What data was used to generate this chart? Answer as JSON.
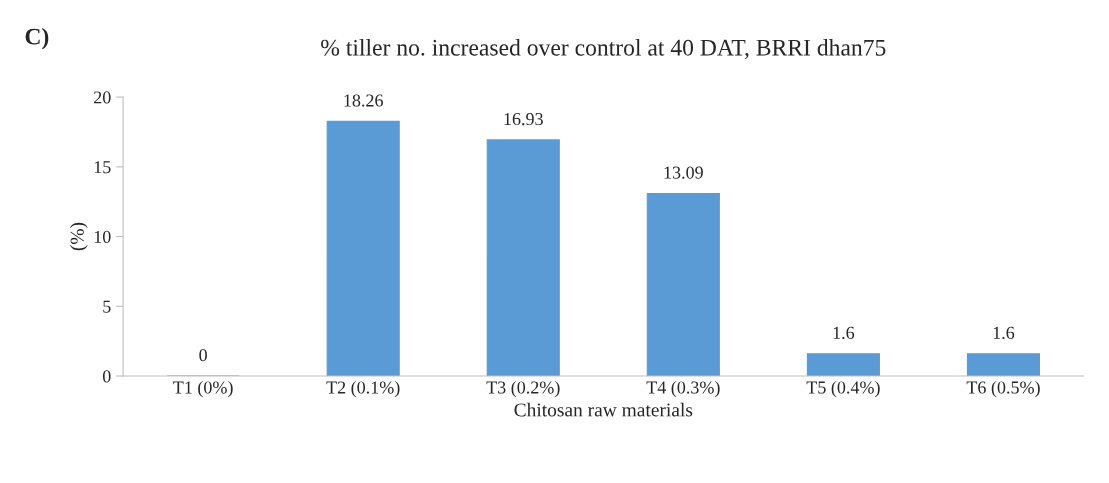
{
  "chart_data": {
    "type": "bar",
    "title": "% tiller no. increased over control at 40 DAT, BRRI dhan75",
    "xlabel": "Chitosan raw materials",
    "ylabel": "(%)",
    "annotations": [
      "C)"
    ],
    "categories": [
      "T1 (0%)",
      "T2 (0.1%)",
      "T3 (0.2%)",
      "T4 (0.3%)",
      "T5 (0.4%)",
      "T6 (0.5%)"
    ],
    "values": [
      0,
      18.26,
      16.93,
      13.09,
      1.6,
      1.6
    ],
    "color": "#5b9bd5",
    "ylim": [
      0,
      20
    ],
    "yticks": [
      0,
      5,
      10,
      15,
      20
    ],
    "data_labels": true
  }
}
